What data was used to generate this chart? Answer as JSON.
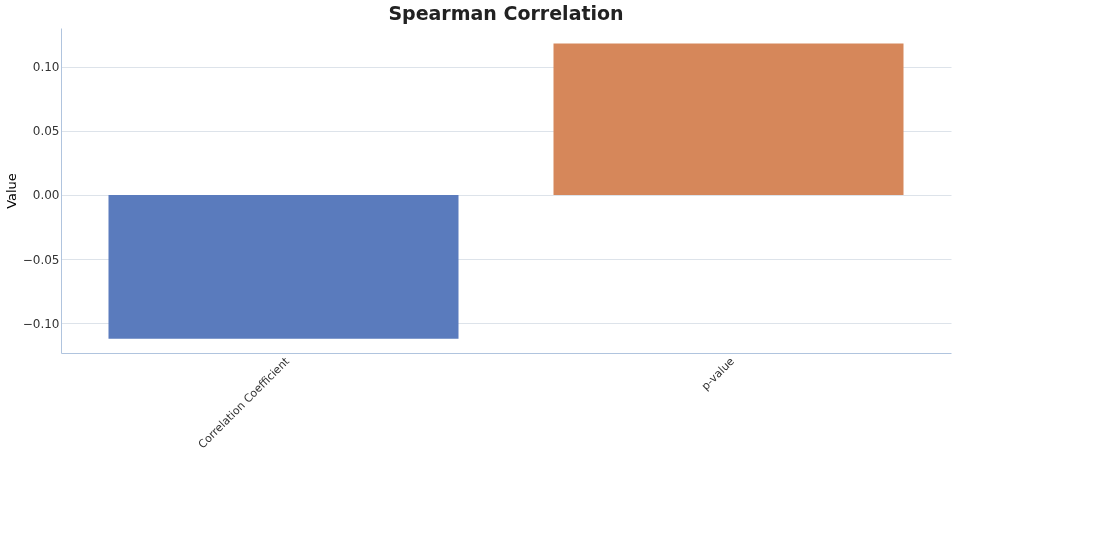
{
  "chart_data": {
    "type": "bar",
    "title": "Spearman Correlation",
    "ylabel": "Value",
    "categories": [
      "Correlation Coefficient",
      "p-value"
    ],
    "values": [
      -0.112,
      0.118
    ],
    "colors": [
      "#5a7bbd",
      "#d6875a"
    ],
    "ylim": [
      -0.123,
      0.13
    ],
    "yticks": [
      {
        "value": -0.1,
        "label": "−0.10"
      },
      {
        "value": -0.05,
        "label": "−0.05"
      },
      {
        "value": 0,
        "label": "0.00"
      },
      {
        "value": 0.05,
        "label": "0.05"
      },
      {
        "value": 0.1,
        "label": "0.10"
      }
    ],
    "grid": "y",
    "legend": false
  }
}
